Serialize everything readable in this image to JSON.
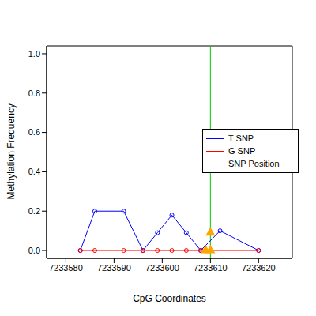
{
  "chart_data": {
    "type": "line",
    "x_label": "CpG Coordinates",
    "y_label": "Methylation Frequency",
    "xlim": [
      7233576,
      7233627
    ],
    "xticks": [
      7233580,
      7233590,
      7233600,
      7233610,
      7233620
    ],
    "ylim": [
      -0.04,
      1.04
    ],
    "yticks": [
      {
        "value": 0,
        "label": "0.0"
      },
      {
        "value": 0.2,
        "label": "0.2"
      },
      {
        "value": 0.4,
        "label": "0.4"
      },
      {
        "value": 0.6,
        "label": "0.6"
      },
      {
        "value": 0.8,
        "label": "0.8"
      },
      {
        "value": 1,
        "label": "1.0"
      }
    ],
    "grid": false,
    "legend": "right",
    "series": [
      {
        "name": "T SNP",
        "color": "#0000FF",
        "marker": "circle",
        "x": [
          7233583,
          7233586,
          7233592,
          7233596,
          7233599,
          7233602,
          7233605,
          7233608,
          7233612,
          7233620
        ],
        "values": [
          0,
          0.2,
          0.2,
          0,
          0.09,
          0.18,
          0.09,
          0,
          0.1,
          0
        ]
      },
      {
        "name": "G SNP",
        "color": "#FF0000",
        "marker": "circle",
        "x": [
          7233583,
          7233586,
          7233592,
          7233596,
          7233599,
          7233602,
          7233605,
          7233608,
          7233620
        ],
        "values": [
          0,
          0,
          0,
          0,
          0,
          0,
          0,
          0,
          0
        ]
      }
    ],
    "vlines": [
      {
        "name": "SNP Position",
        "x": 7233610,
        "color": "#00CC00"
      }
    ],
    "snp_points": {
      "x": [
        7233609,
        7233610,
        7233610
      ],
      "values": [
        0,
        0,
        0.09
      ],
      "color": "#FFA500",
      "marker": "triangle"
    }
  }
}
